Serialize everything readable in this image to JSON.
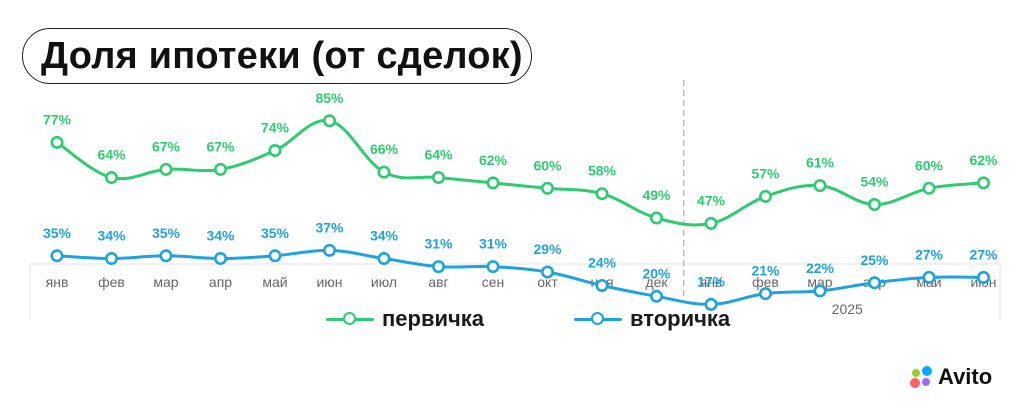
{
  "title": "Доля ипотеки (от сделок)",
  "brand": "Avito",
  "colors": {
    "primary_series": "#2ecc71",
    "secondary_series": "#1fa3e0",
    "divider": "#b5b5b5",
    "tick": "#666666",
    "brand_dots": [
      "#00aaff",
      "#97cf26",
      "#ff6163",
      "#a169f7"
    ]
  },
  "chart_data": {
    "type": "line",
    "categories": [
      "янв",
      "фев",
      "мар",
      "апр",
      "май",
      "июн",
      "июл",
      "авг",
      "сен",
      "окт",
      "ноя",
      "дек",
      "янв",
      "фев",
      "мар",
      "апр",
      "май",
      "июн"
    ],
    "year_label": "2025",
    "year_break_after_index": 11,
    "ylim": [
      0,
      100
    ],
    "grid": false,
    "legend_position": "bottom",
    "series": [
      {
        "name": "первичка",
        "color": "#2ecc71",
        "values": [
          77,
          64,
          67,
          67,
          74,
          85,
          66,
          64,
          62,
          60,
          58,
          49,
          47,
          57,
          61,
          54,
          60,
          62
        ],
        "labels": [
          "77%",
          "64%",
          "67%",
          "67%",
          "74%",
          "85%",
          "66%",
          "64%",
          "62%",
          "60%",
          "58%",
          "49%",
          "47%",
          "57%",
          "61%",
          "54%",
          "60%",
          "62%"
        ]
      },
      {
        "name": "вторичка",
        "color": "#1fa3e0",
        "values": [
          35,
          34,
          35,
          34,
          35,
          37,
          34,
          31,
          31,
          29,
          24,
          20,
          17,
          21,
          22,
          25,
          27,
          27
        ],
        "labels": [
          "35%",
          "34%",
          "35%",
          "34%",
          "35%",
          "37%",
          "34%",
          "31%",
          "31%",
          "29%",
          "24%",
          "20%",
          "17%",
          "21%",
          "22%",
          "25%",
          "27%",
          "27%"
        ]
      }
    ]
  }
}
